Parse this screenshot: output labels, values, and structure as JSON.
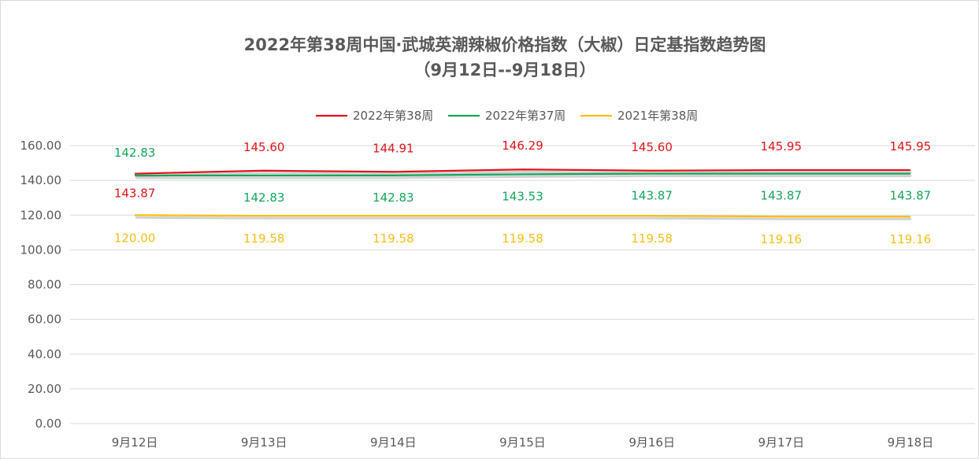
{
  "chart_data": {
    "type": "line",
    "title_line1": "2022年第38周中国·武城英潮辣椒价格指数（大椒）日定基指数趋势图",
    "title_line2": "（9月12日--9月18日）",
    "categories": [
      "9月12日",
      "9月13日",
      "9月14日",
      "9月15日",
      "9月16日",
      "9月17日",
      "9月18日"
    ],
    "series": [
      {
        "name": "2022年第38周",
        "color": "#e0151a",
        "values": [
          143.87,
          145.6,
          144.91,
          146.29,
          145.6,
          145.95,
          145.95
        ],
        "labels": [
          "143.87",
          "145.60",
          "144.91",
          "146.29",
          "145.60",
          "145.95",
          "145.95"
        ]
      },
      {
        "name": "2022年第37周",
        "color": "#14a55a",
        "values": [
          142.83,
          142.83,
          142.83,
          143.53,
          143.87,
          143.87,
          143.87
        ],
        "labels": [
          "142.83",
          "142.83",
          "142.83",
          "143.53",
          "143.87",
          "143.87",
          "143.87"
        ]
      },
      {
        "name": "2021年第38周",
        "color": "#f7be16",
        "values": [
          120.0,
          119.58,
          119.58,
          119.58,
          119.58,
          119.16,
          119.16
        ],
        "labels": [
          "120.00",
          "119.58",
          "119.58",
          "119.58",
          "119.58",
          "119.16",
          "119.16"
        ]
      }
    ],
    "y_ticks": [
      "0.00",
      "20.00",
      "40.00",
      "60.00",
      "80.00",
      "100.00",
      "120.00",
      "140.00",
      "160.00"
    ],
    "ylim": [
      0,
      160
    ],
    "grid": true,
    "legend_position": "top"
  }
}
